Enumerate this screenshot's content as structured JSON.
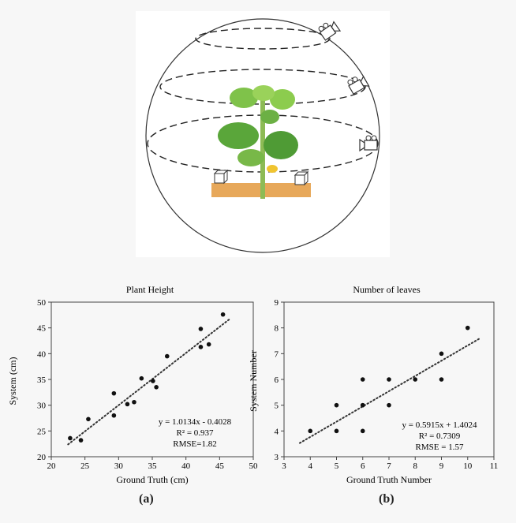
{
  "chart_data": [
    {
      "type": "scatter",
      "title": "Plant Height",
      "xlabel": "Ground Truth (cm)",
      "ylabel": "System (cm)",
      "xlim": [
        20,
        50
      ],
      "ylim": [
        20,
        50
      ],
      "xticks": [
        "20",
        "25",
        "30",
        "35",
        "40",
        "45",
        "50"
      ],
      "yticks": [
        "20",
        "25",
        "30",
        "35",
        "40",
        "45",
        "50"
      ],
      "points": [
        [
          22.8,
          23.6
        ],
        [
          24.4,
          23.2
        ],
        [
          25.5,
          27.3
        ],
        [
          29.3,
          28.0
        ],
        [
          29.3,
          32.3
        ],
        [
          31.3,
          30.2
        ],
        [
          32.3,
          30.6
        ],
        [
          33.4,
          35.2
        ],
        [
          35.1,
          34.7
        ],
        [
          35.6,
          33.5
        ],
        [
          37.2,
          39.5
        ],
        [
          42.2,
          44.8
        ],
        [
          42.2,
          41.3
        ],
        [
          43.4,
          41.8
        ],
        [
          45.5,
          47.6
        ]
      ],
      "trendline": {
        "slope": 1.0134,
        "intercept": -0.4028,
        "x_range": [
          22.5,
          46.5
        ]
      },
      "annotations": [
        "y = 1.0134x - 0.4028",
        "R² = 0.937",
        "RMSE=1.82"
      ],
      "grid": false,
      "panel_label": "(a)"
    },
    {
      "type": "scatter",
      "title": "Number of leaves",
      "xlabel": "Ground Truth Number",
      "ylabel": "System Number",
      "xlim": [
        3,
        11
      ],
      "ylim": [
        3,
        9
      ],
      "xticks": [
        "3",
        "4",
        "5",
        "6",
        "7",
        "8",
        "9",
        "10",
        "11"
      ],
      "yticks": [
        "3",
        "4",
        "5",
        "6",
        "7",
        "8",
        "9"
      ],
      "points": [
        [
          4,
          4
        ],
        [
          5,
          4
        ],
        [
          5,
          5
        ],
        [
          6,
          4
        ],
        [
          6,
          5
        ],
        [
          6,
          5
        ],
        [
          6,
          6
        ],
        [
          7,
          5
        ],
        [
          7,
          6
        ],
        [
          8,
          6
        ],
        [
          9,
          6
        ],
        [
          9,
          7
        ],
        [
          10,
          8
        ]
      ],
      "trendline": {
        "slope": 0.5915,
        "intercept": 1.4024,
        "x_range": [
          3.6,
          10.5
        ]
      },
      "annotations": [
        "y = 0.5915x + 1.4024",
        "R² = 0.7309",
        "RMSE = 1.57"
      ],
      "grid": false,
      "panel_label": "(b)"
    }
  ]
}
